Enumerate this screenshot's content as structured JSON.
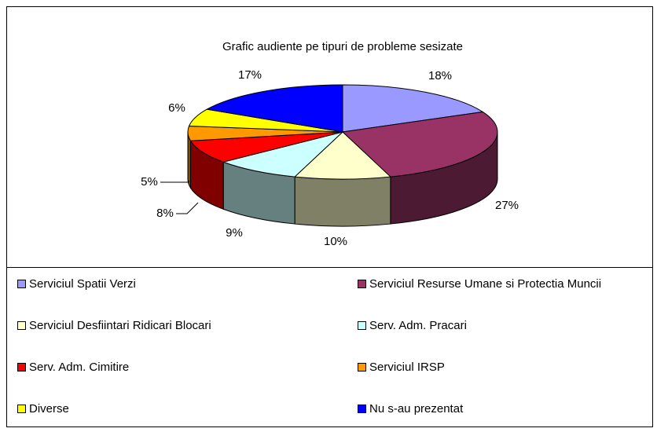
{
  "chart_data": {
    "type": "pie",
    "title": "Grafic audiente pe tipuri de probleme sesizate",
    "categories": [
      "Serviciul Spatii Verzi",
      "Serviciul Resurse Umane si Protectia Muncii",
      "Serviciul Desfiintari Ridicari Blocari",
      "Serv. Adm. Pracari",
      "Serv. Adm. Cimitire",
      "Serviciul IRSP",
      "Diverse",
      "Nu s-au prezentat"
    ],
    "values": [
      18,
      27,
      10,
      9,
      8,
      5,
      6,
      17
    ],
    "value_labels": [
      "18%",
      "27%",
      "10%",
      "9%",
      "8%",
      "5%",
      "6%",
      "17%"
    ],
    "colors": [
      "#9999FF",
      "#993366",
      "#FFFFCC",
      "#CCFFFF",
      "#FF0000",
      "#FF9900",
      "#FFFF00",
      "#0000FF"
    ],
    "legend": "bottom"
  }
}
